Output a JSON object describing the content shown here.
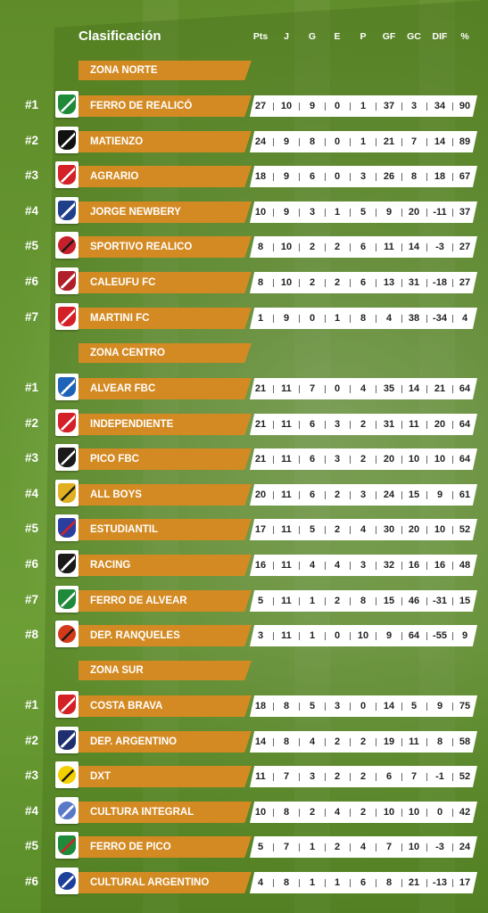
{
  "header": {
    "title": "Clasificación",
    "columns": [
      "Pts",
      "J",
      "G",
      "E",
      "P",
      "GF",
      "GC",
      "DIF",
      "%"
    ]
  },
  "zones": [
    {
      "name": "ZONA NORTE",
      "teams": [
        {
          "rank": "#1",
          "name": "FERRO DE REALICÓ",
          "crest": "ferro-realico-crest-icon",
          "colors": [
            "#1f8a3a",
            "#ffffff"
          ],
          "stats": [
            "27",
            "10",
            "9",
            "0",
            "1",
            "37",
            "3",
            "34",
            "90"
          ]
        },
        {
          "rank": "#2",
          "name": "MATIENZO",
          "crest": "matienzo-crest-icon",
          "colors": [
            "#111111",
            "#ffffff"
          ],
          "stats": [
            "24",
            "9",
            "8",
            "0",
            "1",
            "21",
            "7",
            "14",
            "89"
          ]
        },
        {
          "rank": "#3",
          "name": "AGRARIO",
          "crest": "agrario-crest-icon",
          "colors": [
            "#d42027",
            "#ffffff"
          ],
          "stats": [
            "18",
            "9",
            "6",
            "0",
            "3",
            "26",
            "8",
            "18",
            "67"
          ]
        },
        {
          "rank": "#4",
          "name": "JORGE NEWBERY",
          "crest": "jorge-newbery-crest-icon",
          "colors": [
            "#1f3f8a",
            "#ffffff"
          ],
          "stats": [
            "10",
            "9",
            "3",
            "1",
            "5",
            "9",
            "20",
            "-11",
            "37"
          ]
        },
        {
          "rank": "#5",
          "name": "SPORTIVO REALICO",
          "crest": "sportivo-realico-crest-icon",
          "colors": [
            "#c8202a",
            "#1a1a1a"
          ],
          "stats": [
            "8",
            "10",
            "2",
            "2",
            "6",
            "11",
            "14",
            "-3",
            "27"
          ]
        },
        {
          "rank": "#6",
          "name": "CALEUFU FC",
          "crest": "caleufu-crest-icon",
          "colors": [
            "#b01e2a",
            "#ffffff"
          ],
          "stats": [
            "8",
            "10",
            "2",
            "2",
            "6",
            "13",
            "31",
            "-18",
            "27"
          ]
        },
        {
          "rank": "#7",
          "name": "MARTINI FC",
          "crest": "martini-crest-icon",
          "colors": [
            "#d42027",
            "#ffffff"
          ],
          "stats": [
            "1",
            "9",
            "0",
            "1",
            "8",
            "4",
            "38",
            "-34",
            "4"
          ]
        }
      ]
    },
    {
      "name": "ZONA CENTRO",
      "teams": [
        {
          "rank": "#1",
          "name": "ALVEAR FBC",
          "crest": "alvear-crest-icon",
          "colors": [
            "#1e63b8",
            "#ffffff"
          ],
          "stats": [
            "21",
            "11",
            "7",
            "0",
            "4",
            "35",
            "14",
            "21",
            "64"
          ]
        },
        {
          "rank": "#2",
          "name": "INDEPENDIENTE",
          "crest": "independiente-crest-icon",
          "colors": [
            "#d42027",
            "#ffffff"
          ],
          "stats": [
            "21",
            "11",
            "6",
            "3",
            "2",
            "31",
            "11",
            "20",
            "64"
          ]
        },
        {
          "rank": "#3",
          "name": "PICO FBC",
          "crest": "pico-fbc-crest-icon",
          "colors": [
            "#1a1a1a",
            "#ffffff"
          ],
          "stats": [
            "21",
            "11",
            "6",
            "3",
            "2",
            "20",
            "10",
            "10",
            "64"
          ]
        },
        {
          "rank": "#4",
          "name": "ALL BOYS",
          "crest": "all-boys-crest-icon",
          "colors": [
            "#e0b020",
            "#1a1a1a"
          ],
          "stats": [
            "20",
            "11",
            "6",
            "2",
            "3",
            "24",
            "15",
            "9",
            "61"
          ]
        },
        {
          "rank": "#5",
          "name": "ESTUDIANTIL",
          "crest": "estudiantil-crest-icon",
          "colors": [
            "#2a3ea0",
            "#d42027"
          ],
          "stats": [
            "17",
            "11",
            "5",
            "2",
            "4",
            "30",
            "20",
            "10",
            "52"
          ]
        },
        {
          "rank": "#6",
          "name": "RACING",
          "crest": "racing-crest-icon",
          "colors": [
            "#1a1a1a",
            "#ffffff"
          ],
          "stats": [
            "16",
            "11",
            "4",
            "4",
            "3",
            "32",
            "16",
            "16",
            "48"
          ]
        },
        {
          "rank": "#7",
          "name": "FERRO DE ALVEAR",
          "crest": "ferro-alvear-crest-icon",
          "colors": [
            "#1f8a3a",
            "#ffffff"
          ],
          "stats": [
            "5",
            "11",
            "1",
            "2",
            "8",
            "15",
            "46",
            "-31",
            "15"
          ]
        },
        {
          "rank": "#8",
          "name": "DEP. RANQUELES",
          "crest": "dep-ranqueles-crest-icon",
          "colors": [
            "#d43a1a",
            "#1a1a1a"
          ],
          "stats": [
            "3",
            "11",
            "1",
            "0",
            "10",
            "9",
            "64",
            "-55",
            "9"
          ]
        }
      ]
    },
    {
      "name": "ZONA SUR",
      "teams": [
        {
          "rank": "#1",
          "name": "COSTA BRAVA",
          "crest": "costa-brava-crest-icon",
          "colors": [
            "#d42027",
            "#ffffff"
          ],
          "stats": [
            "18",
            "8",
            "5",
            "3",
            "0",
            "14",
            "5",
            "9",
            "75"
          ]
        },
        {
          "rank": "#2",
          "name": "DEP. ARGENTINO",
          "crest": "dep-argentino-crest-icon",
          "colors": [
            "#1f2f70",
            "#ffffff"
          ],
          "stats": [
            "14",
            "8",
            "4",
            "2",
            "2",
            "19",
            "11",
            "8",
            "58"
          ]
        },
        {
          "rank": "#3",
          "name": "DXT",
          "crest": "dxt-crest-icon",
          "colors": [
            "#f2d000",
            "#1a1a1a"
          ],
          "stats": [
            "11",
            "7",
            "3",
            "2",
            "2",
            "6",
            "7",
            "-1",
            "52"
          ]
        },
        {
          "rank": "#4",
          "name": "CULTURA INTEGRAL",
          "crest": "cultura-integral-crest-icon",
          "colors": [
            "#5a78c8",
            "#ffffff"
          ],
          "stats": [
            "10",
            "8",
            "2",
            "4",
            "2",
            "10",
            "10",
            "0",
            "42"
          ]
        },
        {
          "rank": "#5",
          "name": "FERRO DE PICO",
          "crest": "ferro-pico-crest-icon",
          "colors": [
            "#1f8a3a",
            "#d42027"
          ],
          "stats": [
            "5",
            "7",
            "1",
            "2",
            "4",
            "7",
            "10",
            "-3",
            "24"
          ]
        },
        {
          "rank": "#6",
          "name": "CULTURAL ARGENTINO",
          "crest": "cultural-argentino-crest-icon",
          "colors": [
            "#1e3f9a",
            "#ffffff"
          ],
          "stats": [
            "4",
            "8",
            "1",
            "1",
            "6",
            "8",
            "21",
            "-13",
            "17"
          ]
        }
      ]
    }
  ]
}
